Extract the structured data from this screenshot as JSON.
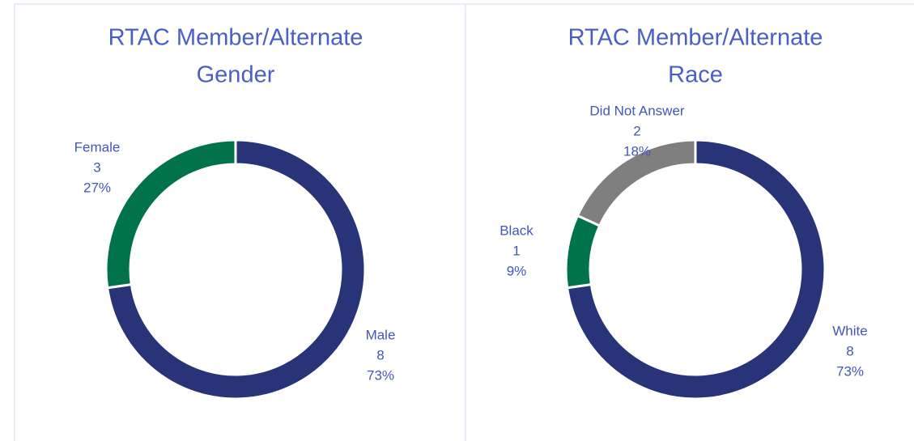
{
  "chart_data": [
    {
      "type": "donut",
      "title": [
        "RTAC Member/Alternate",
        "Gender"
      ],
      "categories": [
        "Male",
        "Female"
      ],
      "values": [
        8,
        3
      ],
      "percent_labels": [
        "73%",
        "27%"
      ],
      "colors": [
        "#283378",
        "#00734a"
      ]
    },
    {
      "type": "donut",
      "title": [
        "RTAC Member/Alternate",
        "Race"
      ],
      "categories": [
        "White",
        "Black",
        "Did Not Answer"
      ],
      "values": [
        8,
        1,
        2
      ],
      "percent_labels": [
        "73%",
        "9%",
        "18%"
      ],
      "colors": [
        "#283378",
        "#00734a",
        "#7f7f7f"
      ]
    }
  ]
}
